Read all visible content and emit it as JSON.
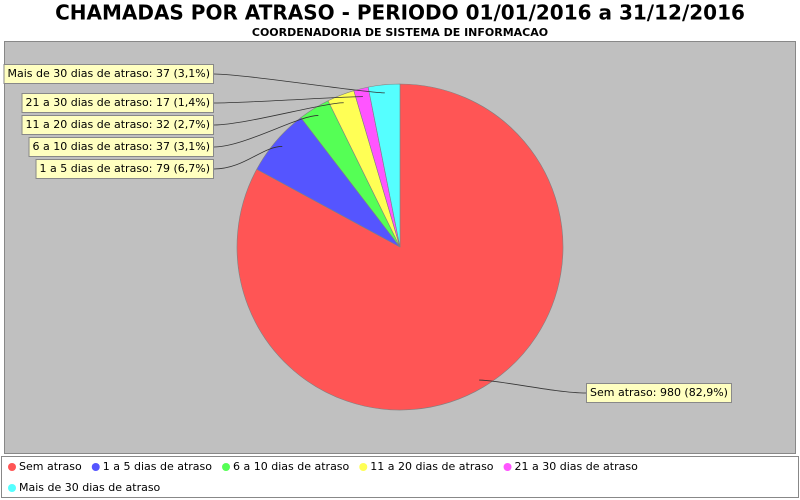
{
  "chart_data": {
    "type": "pie",
    "title": "CHAMADAS POR ATRASO - PERIODO 01/01/2016 a 31/12/2016",
    "subtitle": "COORDENADORIA DE SISTEMA DE INFORMACAO",
    "categories": [
      "Sem atraso",
      "1 a 5 dias de atraso",
      "6 a 10 dias de atraso",
      "11 a 20 dias de atraso",
      "21 a 30 dias de atraso",
      "Mais de 30 dias de atraso"
    ],
    "values": [
      980,
      79,
      37,
      32,
      17,
      37
    ],
    "value_labels": [
      "Sem atraso: 980 (82,9%)",
      "1 a 5 dias de atraso: 79 (6,7%)",
      "6 a 10 dias de atraso: 37 (3,1%)",
      "11 a 20 dias de atraso: 32 (2,7%)",
      "21 a 30 dias de atraso: 17 (1,4%)",
      "Mais de 30 dias de atraso: 37 (3,1%)"
    ],
    "colors": [
      "#ff5555",
      "#5555ff",
      "#55ff55",
      "#ffff55",
      "#ff55ff",
      "#55ffff"
    ],
    "legend": "bottom"
  }
}
